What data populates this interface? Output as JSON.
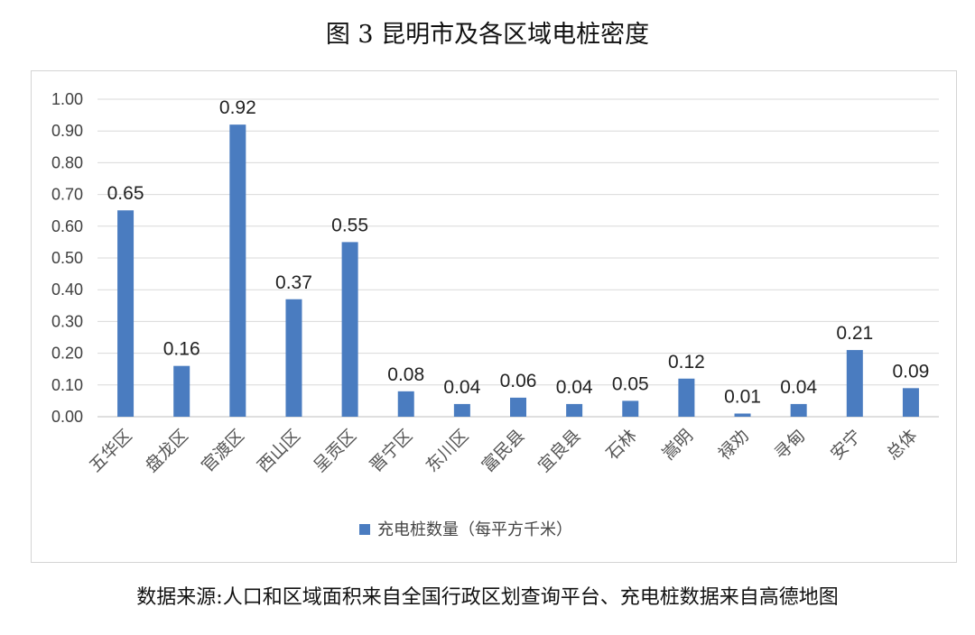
{
  "figure_title": "图 3  昆明市及各区域电桩密度",
  "source_note": "数据来源:人口和区域面积来自全国行政区划查询平台、充电桩数据来自高德地图",
  "chart_data": {
    "type": "bar",
    "title": "",
    "xlabel": "",
    "ylabel": "",
    "categories": [
      "五华区",
      "盘龙区",
      "官渡区",
      "西山区",
      "呈贡区",
      "晋宁区",
      "东川区",
      "富民县",
      "宜良县",
      "石林",
      "嵩明",
      "禄劝",
      "寻甸",
      "安宁",
      "总体"
    ],
    "series": [
      {
        "name": "充电桩数量（每平方千米）",
        "values": [
          0.65,
          0.16,
          0.92,
          0.37,
          0.55,
          0.08,
          0.04,
          0.06,
          0.04,
          0.05,
          0.12,
          0.01,
          0.04,
          0.21,
          0.09
        ],
        "labels": [
          "0.65",
          "0.16",
          "0.92",
          "0.37",
          "0.55",
          "0.08",
          "0.04",
          "0.06",
          "0.04",
          "0.05",
          "0.12",
          "0.01",
          "0.04",
          "0.21",
          "0.09"
        ]
      }
    ],
    "ylim": [
      0,
      1.0
    ],
    "yticks": [
      "0.00",
      "0.10",
      "0.20",
      "0.30",
      "0.40",
      "0.50",
      "0.60",
      "0.70",
      "0.80",
      "0.90",
      "1.00"
    ],
    "grid": true,
    "legend": "bottom",
    "colors": {
      "bar": "#4a7cc0",
      "grid": "#d9d9d9",
      "axis": "#bfbfbf"
    }
  }
}
